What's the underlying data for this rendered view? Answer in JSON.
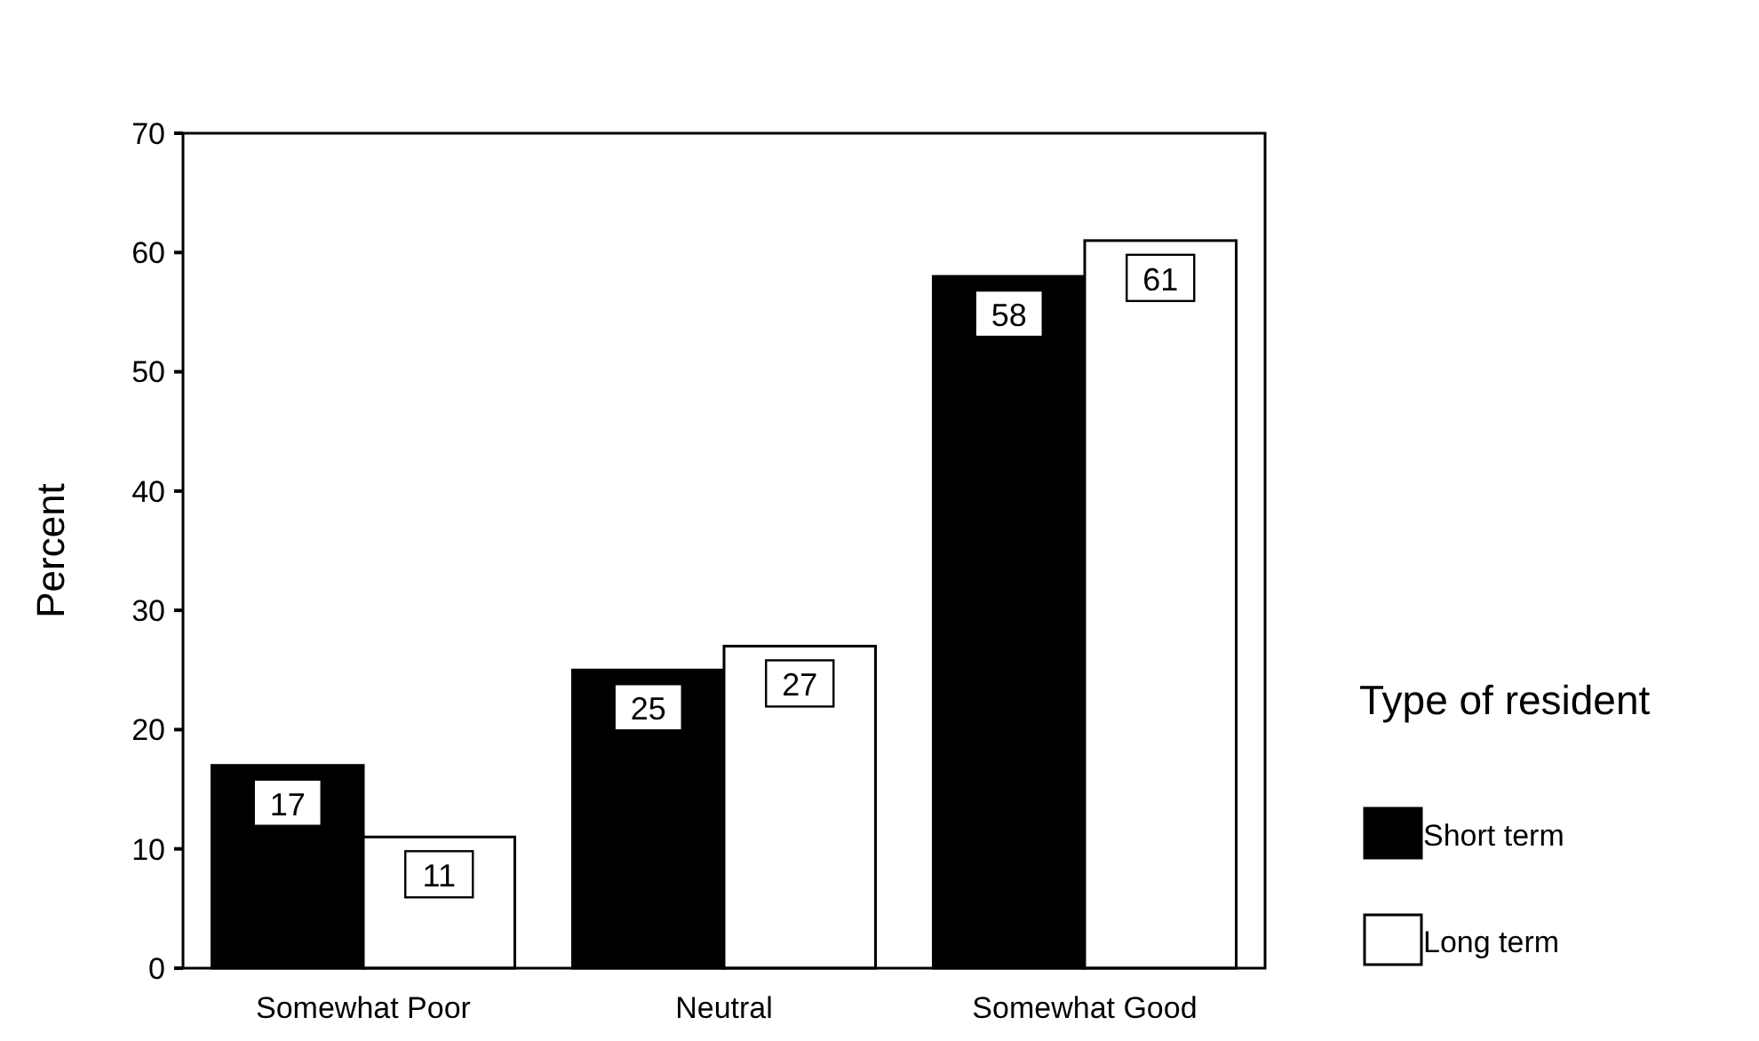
{
  "chart_data": {
    "type": "bar",
    "ylabel": "Percent",
    "legend_title": "Type of resident",
    "categories": [
      "Somewhat Poor",
      "Neutral",
      "Somewhat Good"
    ],
    "series": [
      {
        "name": "Short term",
        "color": "#000000",
        "values": [
          17,
          25,
          58
        ]
      },
      {
        "name": "Long term",
        "color": "#ffffff",
        "values": [
          11,
          27,
          61
        ]
      }
    ],
    "ylim": [
      0,
      70
    ],
    "yticks": [
      0,
      10,
      20,
      30,
      40,
      50,
      60,
      70
    ],
    "data_labels": true,
    "legend": "right",
    "grid": false
  }
}
